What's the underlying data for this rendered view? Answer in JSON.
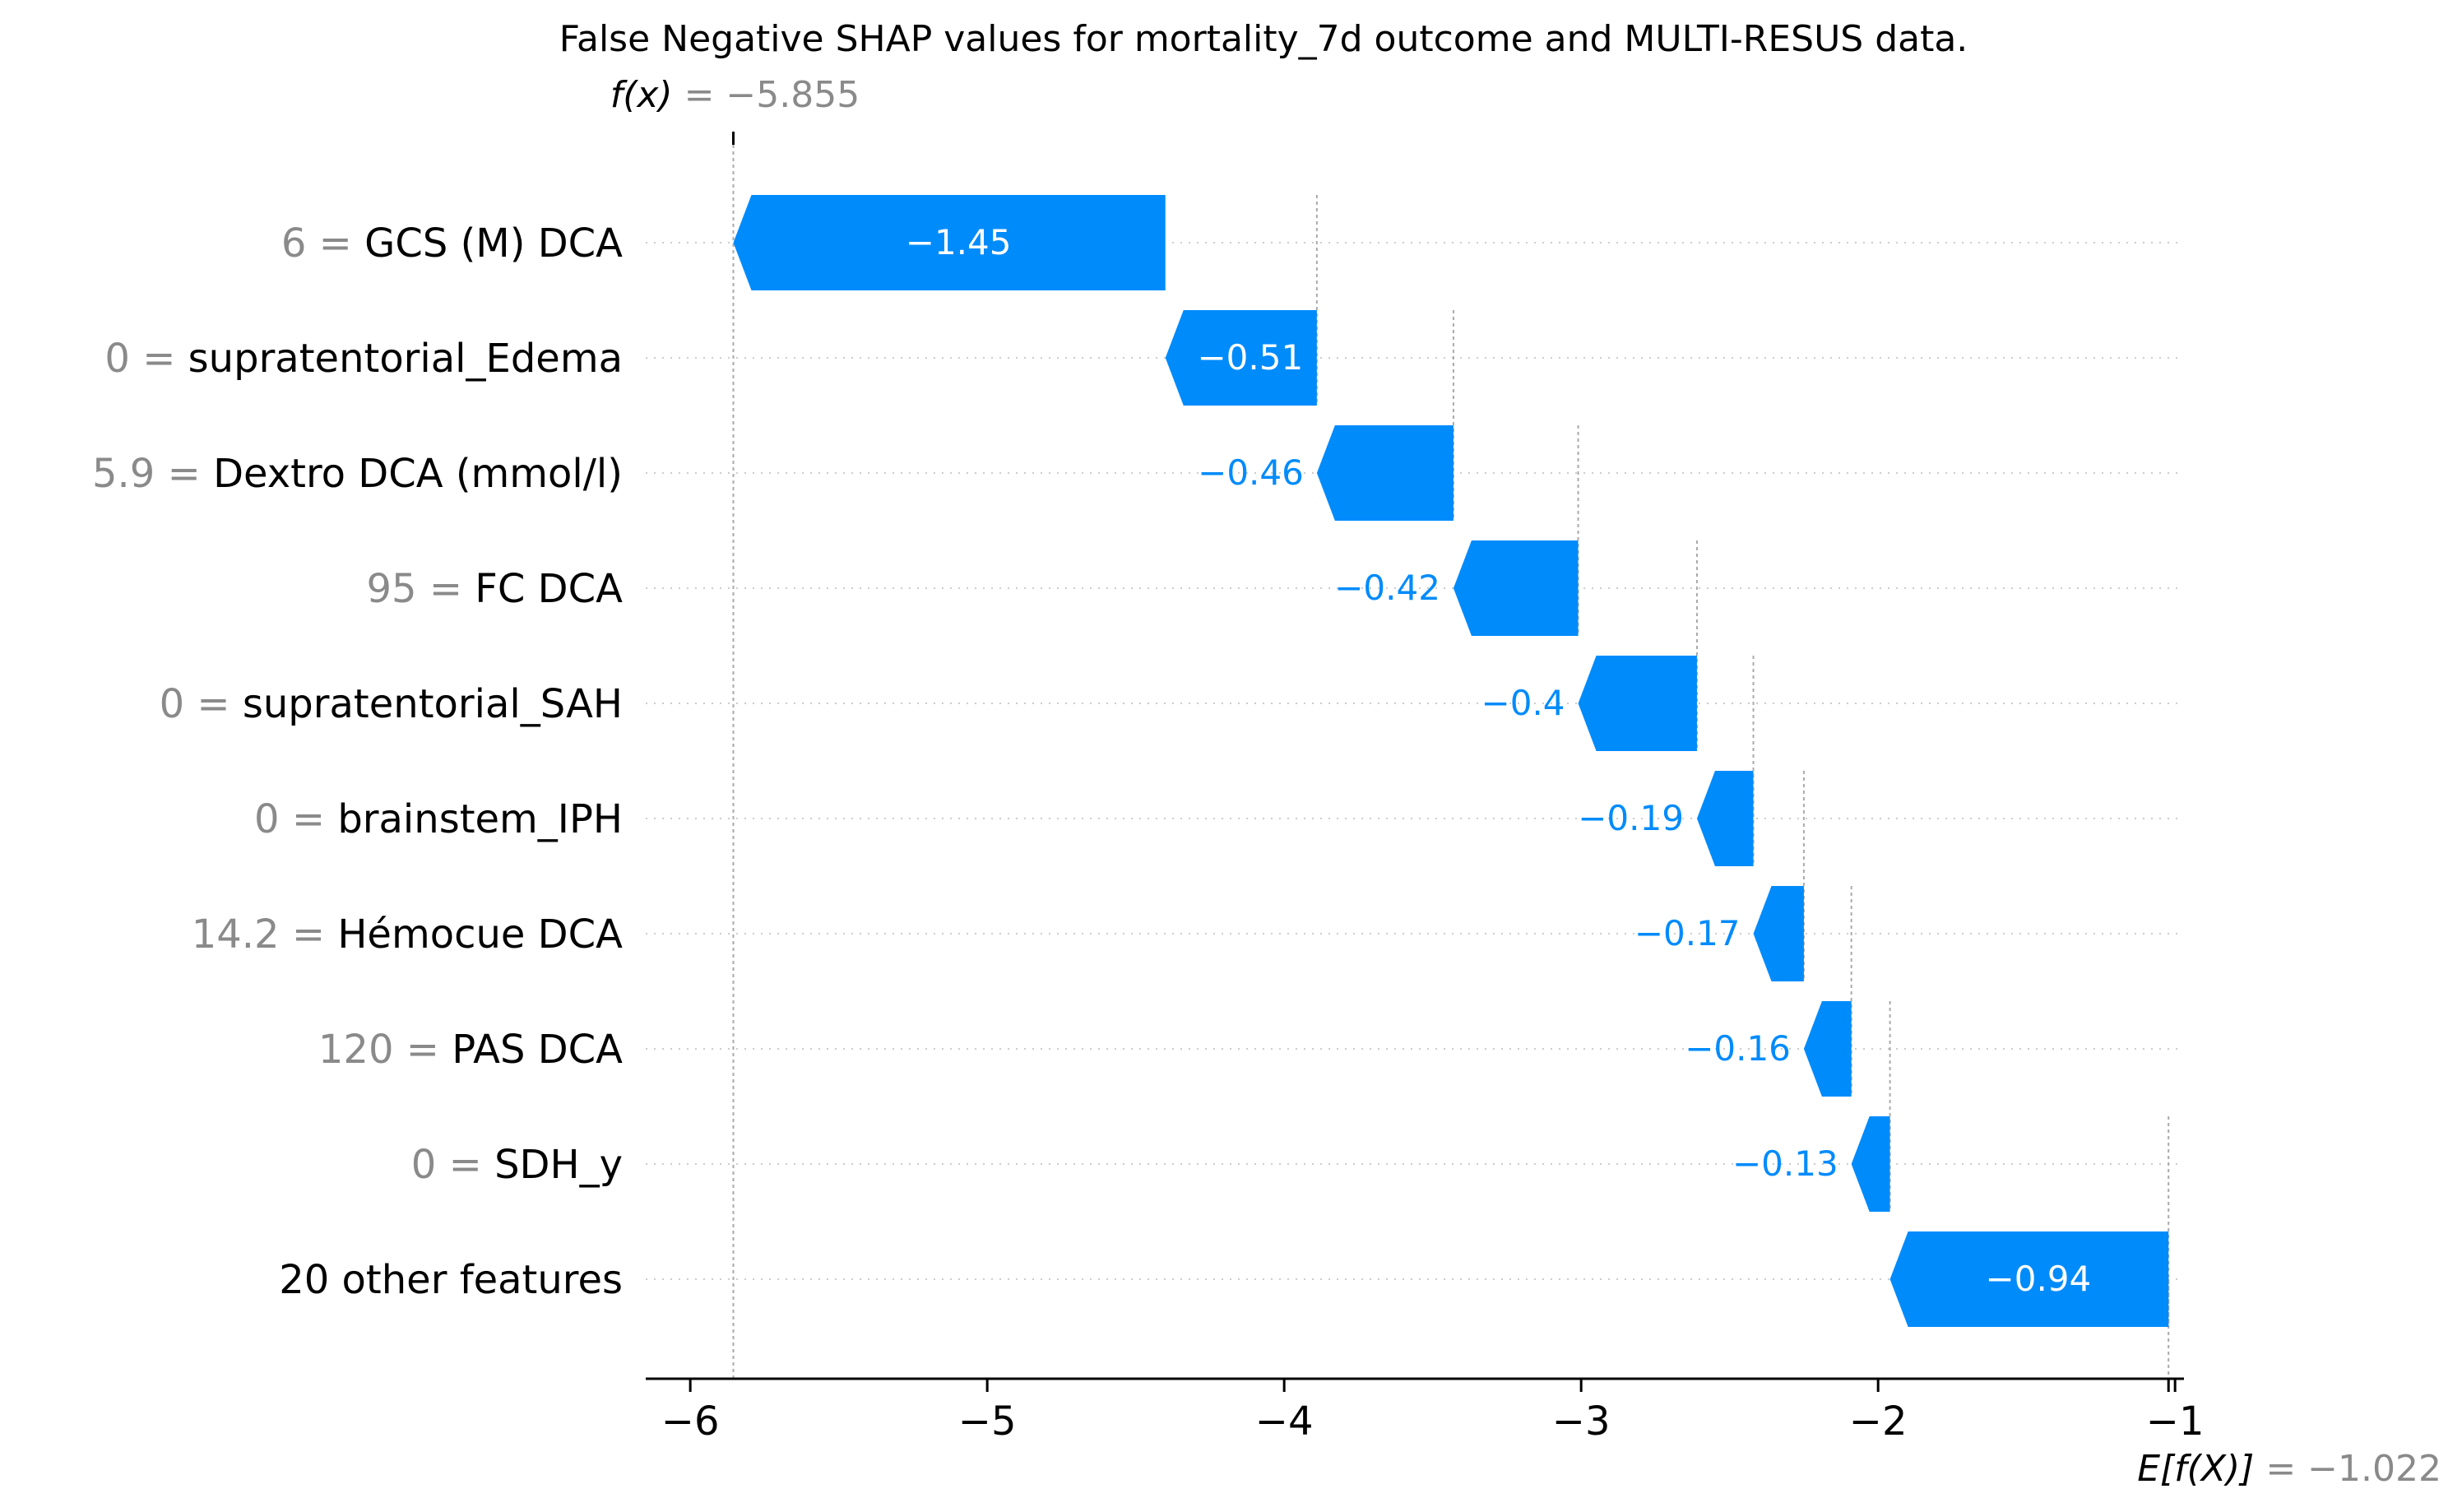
{
  "chart_data": {
    "type": "waterfall",
    "title": "False Negative SHAP values for mortality_7d outcome and MULTI-RESUS data.",
    "fx": {
      "label": "f(x)",
      "value_text": "= −5.855",
      "value": -5.855
    },
    "expected": {
      "label": "E[f(X)]",
      "value_text": "= −1.022",
      "value": -1.022
    },
    "xlim": [
      -6.15,
      -0.97
    ],
    "ticks": [
      {
        "value": -6,
        "label": "−6"
      },
      {
        "value": -5,
        "label": "−5"
      },
      {
        "value": -4,
        "label": "−4"
      },
      {
        "value": -3,
        "label": "−3"
      },
      {
        "value": -2,
        "label": "−2"
      },
      {
        "value": -1,
        "label": "−1"
      }
    ],
    "features": [
      {
        "value_label": "6 =",
        "name": "GCS (M) DCA",
        "start": -4.4,
        "end": -5.855,
        "label": "−1.45"
      },
      {
        "value_label": "0 =",
        "name": "supratentorial_Edema",
        "start": -3.89,
        "end": -4.4,
        "label": "−0.51"
      },
      {
        "value_label": "5.9 =",
        "name": "Dextro DCA (mmol/l)",
        "start": -3.43,
        "end": -3.89,
        "label": "−0.46"
      },
      {
        "value_label": "95 =",
        "name": "FC  DCA",
        "start": -3.01,
        "end": -3.43,
        "label": "−0.42"
      },
      {
        "value_label": "0 =",
        "name": "supratentorial_SAH",
        "start": -2.61,
        "end": -3.01,
        "label": "−0.4"
      },
      {
        "value_label": "0 =",
        "name": "brainstem_IPH",
        "start": -2.42,
        "end": -2.61,
        "label": "−0.19"
      },
      {
        "value_label": "14.2 =",
        "name": "Hémocue DCA",
        "start": -2.25,
        "end": -2.42,
        "label": "−0.17"
      },
      {
        "value_label": "120 =",
        "name": "PAS DCA",
        "start": -2.09,
        "end": -2.25,
        "label": "−0.16"
      },
      {
        "value_label": "0 =",
        "name": "SDH_y",
        "start": -1.96,
        "end": -2.09,
        "label": "−0.13"
      },
      {
        "value_label": "",
        "name": "20 other features",
        "start": -1.022,
        "end": -1.96,
        "label": "−0.94"
      }
    ],
    "colors": {
      "bar": "#008bfb",
      "bar_text": "#ffffff",
      "label_outside": "#008bfb"
    }
  }
}
